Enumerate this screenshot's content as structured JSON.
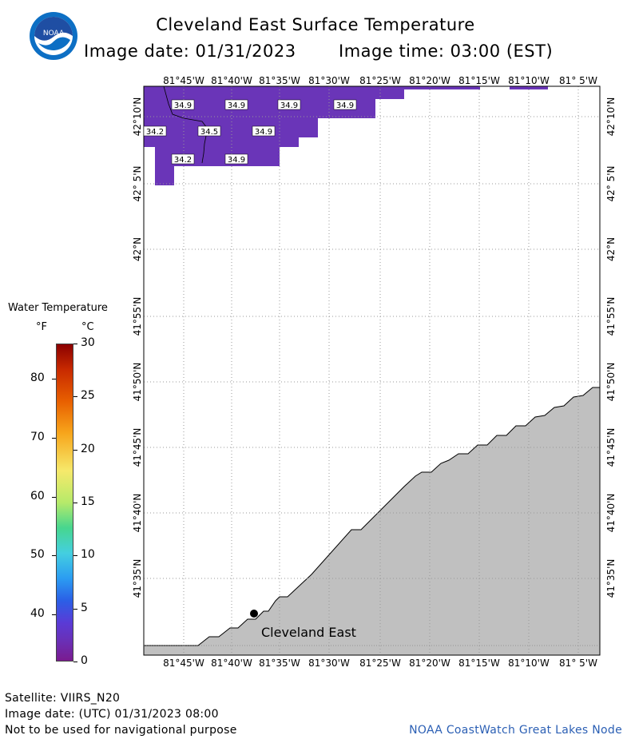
{
  "header": {
    "title": "Cleveland East Surface Temperature",
    "image_date_label": "Image date: 01/31/2023",
    "image_time_label": "Image time: 03:00 (EST)"
  },
  "logo": {
    "text": "NOAA",
    "icon": "noaa-logo-icon"
  },
  "map": {
    "lon_labels": [
      "81°45'W",
      "81°40'W",
      "81°35'W",
      "81°30'W",
      "81°25'W",
      "81°20'W",
      "81°15'W",
      "81°10'W",
      "81° 5'W"
    ],
    "lat_labels": [
      "42°10'N",
      "42° 5'N",
      "42°N",
      "41°55'N",
      "41°50'N",
      "41°45'N",
      "41°40'N",
      "41°35'N"
    ],
    "temperature_labels": [
      "34.9",
      "34.9",
      "34.9",
      "34.9",
      "34.2",
      "34.5",
      "34.9",
      "34.2",
      "34.9"
    ],
    "station": {
      "name": "Cleveland East"
    },
    "colors": {
      "water": "#6a35b8",
      "land": "#c0c0c0",
      "grid": "#999999"
    }
  },
  "legend": {
    "title": "Water Temperature",
    "unit_f": "°F",
    "unit_c": "°C",
    "f_ticks": [
      "80",
      "70",
      "60",
      "50",
      "40"
    ],
    "c_ticks": [
      "30",
      "25",
      "20",
      "15",
      "10",
      "5",
      "0"
    ]
  },
  "footer": {
    "satellite": "Satellite: VIIRS_N20",
    "utc_date": "Image date: (UTC) 01/31/2023  08:00",
    "disclaimer": "Not to be used for navigational purpose",
    "credit": "NOAA CoastWatch Great Lakes Node"
  }
}
